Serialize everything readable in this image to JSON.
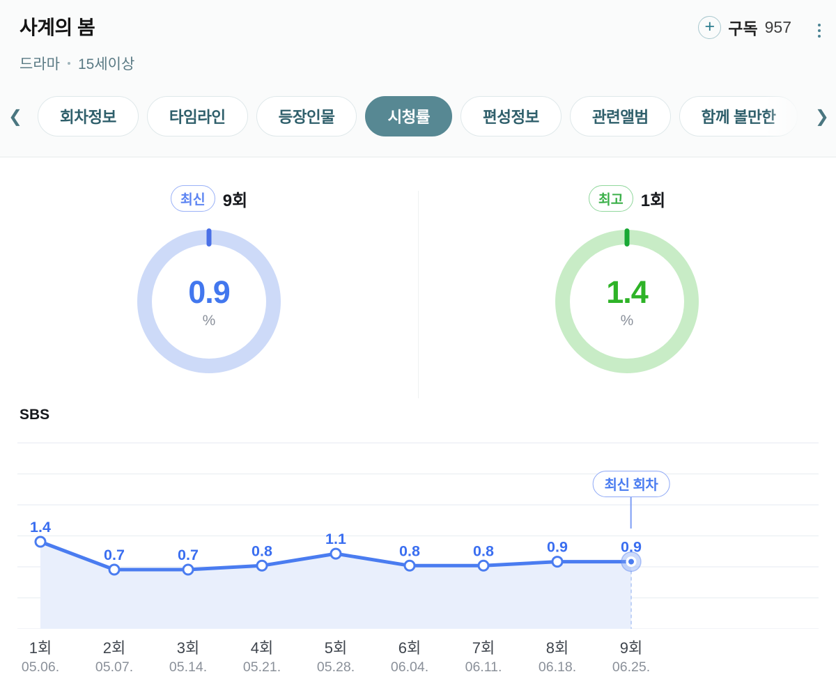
{
  "header": {
    "title": "사계의 봄",
    "genre": "드라마",
    "rating": "15세이상",
    "subscribe_label": "구독",
    "subscribe_count": "957"
  },
  "tabs": {
    "items": [
      {
        "label": "회차정보",
        "active": false
      },
      {
        "label": "타임라인",
        "active": false
      },
      {
        "label": "등장인물",
        "active": false
      },
      {
        "label": "시청률",
        "active": true
      },
      {
        "label": "편성정보",
        "active": false
      },
      {
        "label": "관련앨범",
        "active": false
      },
      {
        "label": "함께 볼만한",
        "active": false
      }
    ]
  },
  "summary": {
    "latest": {
      "badge": "최신",
      "episode": "9회",
      "value": "0.9",
      "unit": "%",
      "accent": "#4277ee",
      "ring": "#cddaf8"
    },
    "best": {
      "badge": "최고",
      "episode": "1회",
      "value": "1.4",
      "unit": "%",
      "accent": "#2eb327",
      "ring": "#c8ecc6"
    }
  },
  "channel": "SBS",
  "chart_data": {
    "type": "area",
    "title": "SBS 시청률",
    "categories": [
      "1회",
      "2회",
      "3회",
      "4회",
      "5회",
      "6회",
      "7회",
      "8회",
      "9회"
    ],
    "dates": [
      "05.06.",
      "05.07.",
      "05.14.",
      "05.21.",
      "05.28.",
      "06.04.",
      "06.11.",
      "06.18.",
      "06.25."
    ],
    "values": [
      1.4,
      0.7,
      0.7,
      0.8,
      1.1,
      0.8,
      0.8,
      0.9,
      0.9
    ],
    "unit": "%",
    "xlabel": "",
    "ylabel": "",
    "y_axis_labels": false,
    "grid": true,
    "gridline_count": 7,
    "legend": "none",
    "annotation": {
      "label": "최신 회차",
      "index": 8
    },
    "line_color": "#4a7cf0",
    "fill_color": "#e9effc",
    "value_label_color": "#3a6ef0",
    "grid_color": "#eef1f5"
  }
}
